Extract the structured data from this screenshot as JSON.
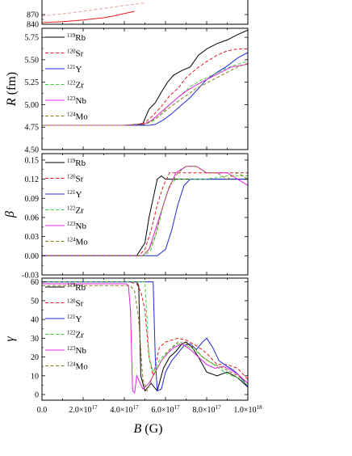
{
  "chart_data": [
    {
      "type": "line",
      "panel": "top",
      "ylabel": "",
      "yticks": [
        "840",
        "870"
      ],
      "ylim": [
        840,
        920
      ],
      "xlim": [
        0,
        1e+18
      ],
      "series": [
        {
          "color": "#e41a1c",
          "dash": "solid",
          "x": [
            0,
            1e+17,
            2e+17,
            3e+17,
            3.5e+17,
            4e+17,
            4.5e+17
          ],
          "y": [
            845,
            848,
            853,
            860,
            866,
            873,
            880
          ]
        },
        {
          "color": "#e7a29a",
          "dash": "dashed",
          "x": [
            0,
            1e+17,
            2e+17,
            3e+17,
            4e+17,
            5e+17
          ],
          "y": [
            866,
            872,
            880,
            889,
            898,
            906
          ]
        }
      ]
    },
    {
      "type": "line",
      "panel": "radius",
      "ylabel": "R (fm)",
      "yticks": [
        "4.50",
        "4.75",
        "5.00",
        "5.25",
        "5.50",
        "5.75"
      ],
      "ylim": [
        4.5,
        5.85
      ],
      "xlim": [
        0,
        1e+18
      ],
      "series": [
        {
          "name": "119Rb",
          "nucleus_mass": "119",
          "nucleus_symbol": "Rb",
          "color": "#000000",
          "dash": "solid",
          "x": [
            0,
            4e+17,
            4.6e+17,
            4.9e+17,
            5.2e+17,
            5.5e+17,
            5.8e+17,
            6.1e+17,
            6.4e+17,
            6.8e+17,
            7.2e+17,
            7.6e+17,
            8e+17,
            8.5e+17,
            9e+17,
            9.5e+17,
            1e+18
          ],
          "y": [
            4.77,
            4.77,
            4.78,
            4.79,
            4.95,
            5.02,
            5.14,
            5.25,
            5.33,
            5.38,
            5.42,
            5.55,
            5.62,
            5.68,
            5.72,
            5.78,
            5.83
          ]
        },
        {
          "name": "120Sr",
          "nucleus_mass": "120",
          "nucleus_symbol": "Sr",
          "color": "#e41a1c",
          "dash": "dashed",
          "x": [
            0,
            4e+17,
            4.7e+17,
            5e+17,
            5.4e+17,
            5.8e+17,
            6.2e+17,
            6.6e+17,
            7e+17,
            7.5e+17,
            8e+17,
            8.5e+17,
            9e+17,
            9.5e+17,
            1e+18
          ],
          "y": [
            4.77,
            4.77,
            4.78,
            4.8,
            4.88,
            4.98,
            5.1,
            5.18,
            5.3,
            5.4,
            5.48,
            5.55,
            5.6,
            5.62,
            5.62
          ]
        },
        {
          "name": "121Y",
          "nucleus_mass": "121",
          "nucleus_symbol": "Y",
          "color": "#1f2bd6",
          "dash": "solid",
          "x": [
            0,
            4e+17,
            5.2e+17,
            5.5e+17,
            5.9e+17,
            6.3e+17,
            6.8e+17,
            7.2e+17,
            7.6e+17,
            8e+17,
            8.5e+17,
            9e+17,
            9.5e+17,
            1e+18
          ],
          "y": [
            4.77,
            4.77,
            4.77,
            4.78,
            4.83,
            4.9,
            5.0,
            5.08,
            5.18,
            5.28,
            5.36,
            5.43,
            5.52,
            5.58
          ]
        },
        {
          "name": "122Zr",
          "nucleus_mass": "122",
          "nucleus_symbol": "Zr",
          "color": "#3bd23b",
          "dash": "dashed",
          "x": [
            0,
            4e+17,
            5e+17,
            5.4e+17,
            5.8e+17,
            6.2e+17,
            6.7e+17,
            7.2e+17,
            7.8e+17,
            8.3e+17,
            8.9e+17,
            9.5e+17,
            1e+18
          ],
          "y": [
            4.77,
            4.77,
            4.78,
            4.82,
            4.9,
            5.0,
            5.1,
            5.2,
            5.28,
            5.33,
            5.4,
            5.45,
            5.48
          ]
        },
        {
          "name": "123Nb",
          "nucleus_mass": "123",
          "nucleus_symbol": "Nb",
          "color": "#e020e0",
          "dash": "solid",
          "x": [
            0,
            4e+17,
            4.9e+17,
            5.3e+17,
            5.7e+17,
            6.1e+17,
            6.6e+17,
            7e+17,
            7.5e+17,
            8e+17,
            8.6e+17,
            9.2e+17,
            1e+18
          ],
          "y": [
            4.77,
            4.77,
            4.78,
            4.82,
            4.9,
            4.98,
            5.08,
            5.15,
            5.22,
            5.28,
            5.35,
            5.42,
            5.45
          ]
        },
        {
          "name": "124Mo",
          "nucleus_mass": "124",
          "nucleus_symbol": "Mo",
          "color": "#8a7a1a",
          "dash": "dashed",
          "x": [
            0,
            4e+17,
            5e+17,
            5.5e+17,
            6e+17,
            6.5e+17,
            7e+17,
            7.5e+17,
            8e+17,
            8.5e+17,
            9e+17,
            9.5e+17,
            1e+18
          ],
          "y": [
            4.77,
            4.77,
            4.78,
            4.84,
            4.93,
            5.02,
            5.1,
            5.18,
            5.24,
            5.3,
            5.36,
            5.42,
            5.46
          ]
        }
      ]
    },
    {
      "type": "line",
      "panel": "beta",
      "ylabel": "β",
      "yticks": [
        "-0.03",
        "0.00",
        "0.03",
        "0.06",
        "0.09",
        "0.12",
        "0.15"
      ],
      "ylim": [
        -0.03,
        0.16
      ],
      "xlim": [
        0,
        1e+18
      ],
      "series": [
        {
          "name": "119Rb",
          "nucleus_mass": "119",
          "nucleus_symbol": "Rb",
          "color": "#000000",
          "dash": "solid",
          "x": [
            0,
            4.6e+17,
            4.8e+17,
            5e+17,
            5.2e+17,
            5.4e+17,
            5.6e+17,
            5.8e+17,
            6e+17,
            7e+17,
            8e+17,
            9e+17,
            1e+18
          ],
          "y": [
            0,
            0,
            0.01,
            0.02,
            0.06,
            0.09,
            0.12,
            0.125,
            0.12,
            0.12,
            0.12,
            0.12,
            0.12
          ]
        },
        {
          "name": "120Sr",
          "nucleus_mass": "120",
          "nucleus_symbol": "Sr",
          "color": "#e41a1c",
          "dash": "dashed",
          "x": [
            0,
            4.7e+17,
            5e+17,
            5.3e+17,
            5.6e+17,
            5.9e+17,
            6.2e+17,
            6.6e+17,
            7e+17,
            8e+17,
            9e+17,
            1e+18
          ],
          "y": [
            0,
            0,
            0.01,
            0.04,
            0.08,
            0.11,
            0.13,
            0.13,
            0.13,
            0.13,
            0.13,
            0.13
          ]
        },
        {
          "name": "121Y",
          "nucleus_mass": "121",
          "nucleus_symbol": "Y",
          "color": "#1f2bd6",
          "dash": "solid",
          "x": [
            0,
            5.2e+17,
            5.6e+17,
            6e+17,
            6.3e+17,
            6.6e+17,
            6.9e+17,
            7.2e+17,
            8e+17,
            9e+17,
            1e+18
          ],
          "y": [
            0,
            0,
            0,
            0.01,
            0.04,
            0.08,
            0.11,
            0.12,
            0.12,
            0.12,
            0.12
          ]
        },
        {
          "name": "122Zr",
          "nucleus_mass": "122",
          "nucleus_symbol": "Zr",
          "color": "#3bd23b",
          "dash": "dashed",
          "x": [
            0,
            5e+17,
            5.3e+17,
            5.6e+17,
            5.9e+17,
            6.2e+17,
            6.5e+17,
            7e+17,
            8e+17,
            9e+17,
            1e+18
          ],
          "y": [
            0,
            0,
            0.01,
            0.04,
            0.08,
            0.11,
            0.12,
            0.12,
            0.12,
            0.125,
            0.125
          ]
        },
        {
          "name": "123Nb",
          "nucleus_mass": "123",
          "nucleus_symbol": "Nb",
          "color": "#e020e0",
          "dash": "solid",
          "x": [
            0,
            4.9e+17,
            5.2e+17,
            5.5e+17,
            5.8e+17,
            6.1e+17,
            6.5e+17,
            7e+17,
            7.5e+17,
            8e+17,
            8.5e+17,
            9e+17,
            9.5e+17,
            1e+18
          ],
          "y": [
            0,
            0,
            0.01,
            0.04,
            0.07,
            0.1,
            0.13,
            0.14,
            0.14,
            0.13,
            0.13,
            0.13,
            0.12,
            0.11
          ]
        },
        {
          "name": "124Mo",
          "nucleus_mass": "124",
          "nucleus_symbol": "Mo",
          "color": "#8a7a1a",
          "dash": "dashed",
          "x": [
            0,
            4.9e+17,
            5.2e+17,
            5.5e+17,
            5.8e+17,
            6.2e+17,
            6.6e+17,
            7e+17,
            7.5e+17,
            8e+17,
            8.5e+17,
            9e+17,
            9.5e+17,
            1e+18
          ],
          "y": [
            0,
            0,
            0.01,
            0.03,
            0.07,
            0.11,
            0.13,
            0.14,
            0.14,
            0.13,
            0.13,
            0.12,
            0.13,
            0.12
          ]
        }
      ]
    },
    {
      "type": "line",
      "panel": "gamma",
      "ylabel": "γ",
      "xlabel": "B (G)",
      "yticks": [
        "0",
        "10",
        "20",
        "30",
        "40",
        "50",
        "60"
      ],
      "xticks": [
        "0.0",
        "2.0×10",
        "4.0×10",
        "6.0×10",
        "8.0×10",
        "1.0×10"
      ],
      "xtick_exps": [
        "",
        "17",
        "17",
        "17",
        "17",
        "18"
      ],
      "ylim": [
        -3,
        62
      ],
      "xlim": [
        0,
        1e+18
      ],
      "series": [
        {
          "name": "119Rb",
          "nucleus_mass": "119",
          "nucleus_symbol": "Rb",
          "color": "#000000",
          "dash": "solid",
          "x": [
            0,
            4.6e+17,
            4.7e+17,
            4.8e+17,
            5e+17,
            5.3e+17,
            5.6e+17,
            5.9e+17,
            6.2e+17,
            6.5e+17,
            6.8e+17,
            7e+17,
            7.3e+17,
            7.6e+17,
            8e+17,
            8.5e+17,
            9e+17,
            9.5e+17,
            1e+18
          ],
          "y": [
            60,
            60,
            58,
            10,
            2,
            6,
            2,
            14,
            20,
            23,
            27,
            28,
            25,
            20,
            12,
            10,
            12,
            9,
            4
          ]
        },
        {
          "name": "120Sr",
          "nucleus_mass": "120",
          "nucleus_symbol": "Sr",
          "color": "#e41a1c",
          "dash": "dashed",
          "x": [
            0,
            4.2e+17,
            4.6e+17,
            4.8e+17,
            5e+17,
            5.2e+17,
            5.4e+17,
            5.7e+17,
            6e+17,
            6.3e+17,
            6.6e+17,
            7e+17,
            7.5e+17,
            8e+17,
            8.5e+17,
            9e+17,
            9.5e+17,
            1e+18
          ],
          "y": [
            60,
            60,
            59,
            55,
            45,
            20,
            10,
            25,
            28,
            29,
            30,
            29,
            26,
            22,
            16,
            16,
            14,
            8
          ]
        },
        {
          "name": "121Y",
          "nucleus_mass": "121",
          "nucleus_symbol": "Y",
          "color": "#1f2bd6",
          "dash": "solid",
          "x": [
            0,
            5.4e+17,
            5.5e+17,
            5.6e+17,
            5.8e+17,
            6e+17,
            6.3e+17,
            6.6e+17,
            6.9e+17,
            7.2e+17,
            7.5e+17,
            7.8e+17,
            8e+17,
            8.3e+17,
            8.6e+17,
            9e+17,
            9.3e+17,
            9.6e+17,
            1e+18
          ],
          "y": [
            60,
            60,
            20,
            2,
            3,
            12,
            18,
            22,
            26,
            27,
            24,
            28,
            30,
            25,
            18,
            15,
            13,
            10,
            4
          ]
        },
        {
          "name": "122Zr",
          "nucleus_mass": "122",
          "nucleus_symbol": "Zr",
          "color": "#3bd23b",
          "dash": "dashed",
          "x": [
            0,
            5e+17,
            5.1e+17,
            5.2e+17,
            5.4e+17,
            5.7e+17,
            6e+17,
            6.3e+17,
            6.6e+17,
            7e+17,
            7.4e+17,
            7.8e+17,
            8.2e+17,
            8.6e+17,
            9e+17,
            9.5e+17,
            1e+18
          ],
          "y": [
            60,
            60,
            40,
            20,
            12,
            18,
            22,
            25,
            27,
            26,
            24,
            20,
            17,
            14,
            11,
            9,
            5
          ]
        },
        {
          "name": "123Nb",
          "nucleus_mass": "123",
          "nucleus_symbol": "Nb",
          "color": "#e020e0",
          "dash": "solid",
          "x": [
            0,
            4.1e+17,
            4.2e+17,
            4.3e+17,
            4.4e+17,
            4.5e+17,
            4.6e+17,
            4.9e+17,
            5.2e+17,
            5.5e+17,
            5.8e+17,
            6.1e+17,
            6.4e+17,
            6.8e+17,
            7.2e+17,
            7.6e+17,
            8e+17,
            8.4e+17,
            8.8e+17,
            9.2e+17,
            9.6e+17,
            1e+18
          ],
          "y": [
            59,
            59,
            58,
            45,
            2,
            1,
            10,
            3,
            6,
            12,
            18,
            22,
            25,
            27,
            24,
            20,
            16,
            14,
            15,
            13,
            10,
            6
          ]
        },
        {
          "name": "124Mo",
          "nucleus_mass": "124",
          "nucleus_symbol": "Mo",
          "color": "#8a7a1a",
          "dash": "dashed",
          "x": [
            0,
            4.3e+17,
            4.5e+17,
            4.7e+17,
            4.9e+17,
            5.1e+17,
            5.4e+17,
            5.8e+17,
            6.2e+17,
            6.6e+17,
            7e+17,
            7.4e+17,
            7.8e+17,
            8.2e+17,
            8.6e+17,
            9e+17,
            9.5e+17,
            1e+18
          ],
          "y": [
            58,
            58,
            55,
            40,
            8,
            2,
            10,
            18,
            24,
            28,
            27,
            25,
            20,
            17,
            15,
            13,
            10,
            6
          ]
        }
      ]
    }
  ]
}
